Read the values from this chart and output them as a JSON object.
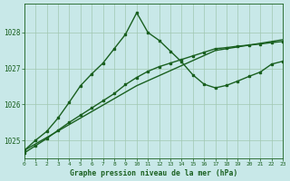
{
  "title": "Graphe pression niveau de la mer (hPa)",
  "background_color": "#c8e8e8",
  "grid_color": "#a0c8b0",
  "line_color": "#1a6020",
  "xlim": [
    0,
    23
  ],
  "ylim": [
    1024.5,
    1028.8
  ],
  "yticks": [
    1025,
    1026,
    1027,
    1028
  ],
  "xticks": [
    0,
    1,
    2,
    3,
    4,
    5,
    6,
    7,
    8,
    9,
    10,
    11,
    12,
    13,
    14,
    15,
    16,
    17,
    18,
    19,
    20,
    21,
    22,
    23
  ],
  "series": [
    {
      "x": [
        0,
        1,
        2,
        3,
        4,
        5,
        6,
        7,
        8,
        9,
        10,
        11,
        12,
        13,
        14,
        15,
        16,
        17,
        18,
        19,
        20,
        21,
        22,
        23
      ],
      "y": [
        1024.72,
        1024.9,
        1025.08,
        1025.26,
        1025.44,
        1025.62,
        1025.8,
        1025.98,
        1026.16,
        1026.34,
        1026.52,
        1026.66,
        1026.8,
        1026.94,
        1027.08,
        1027.22,
        1027.36,
        1027.5,
        1027.55,
        1027.6,
        1027.65,
        1027.7,
        1027.75,
        1027.8
      ],
      "marker": false,
      "linewidth": 1.0
    },
    {
      "x": [
        0,
        1,
        2,
        3,
        4,
        5,
        6,
        7,
        8,
        9,
        10,
        11,
        12,
        13,
        14,
        15,
        16,
        17,
        18,
        19,
        20,
        21,
        22,
        23
      ],
      "y": [
        1024.65,
        1024.85,
        1025.05,
        1025.28,
        1025.5,
        1025.7,
        1025.9,
        1026.1,
        1026.3,
        1026.55,
        1026.75,
        1026.92,
        1027.05,
        1027.15,
        1027.25,
        1027.35,
        1027.45,
        1027.55,
        1027.58,
        1027.62,
        1027.65,
        1027.68,
        1027.72,
        1027.75
      ],
      "marker": true,
      "linewidth": 1.0
    },
    {
      "x": [
        0,
        1,
        2,
        3,
        4,
        5,
        6,
        7,
        8,
        9,
        10,
        11,
        12,
        13,
        14,
        15,
        16,
        17,
        18,
        19,
        20,
        21,
        22,
        23
      ],
      "y": [
        1024.72,
        1025.0,
        1025.25,
        1025.62,
        1026.06,
        1026.52,
        1026.85,
        1027.15,
        1027.55,
        1027.95,
        1028.55,
        1028.0,
        1027.78,
        1027.48,
        1027.18,
        1026.82,
        1026.56,
        1026.46,
        1026.53,
        1026.65,
        1026.78,
        1026.9,
        1027.12,
        1027.2
      ],
      "marker": true,
      "linewidth": 1.0
    }
  ]
}
